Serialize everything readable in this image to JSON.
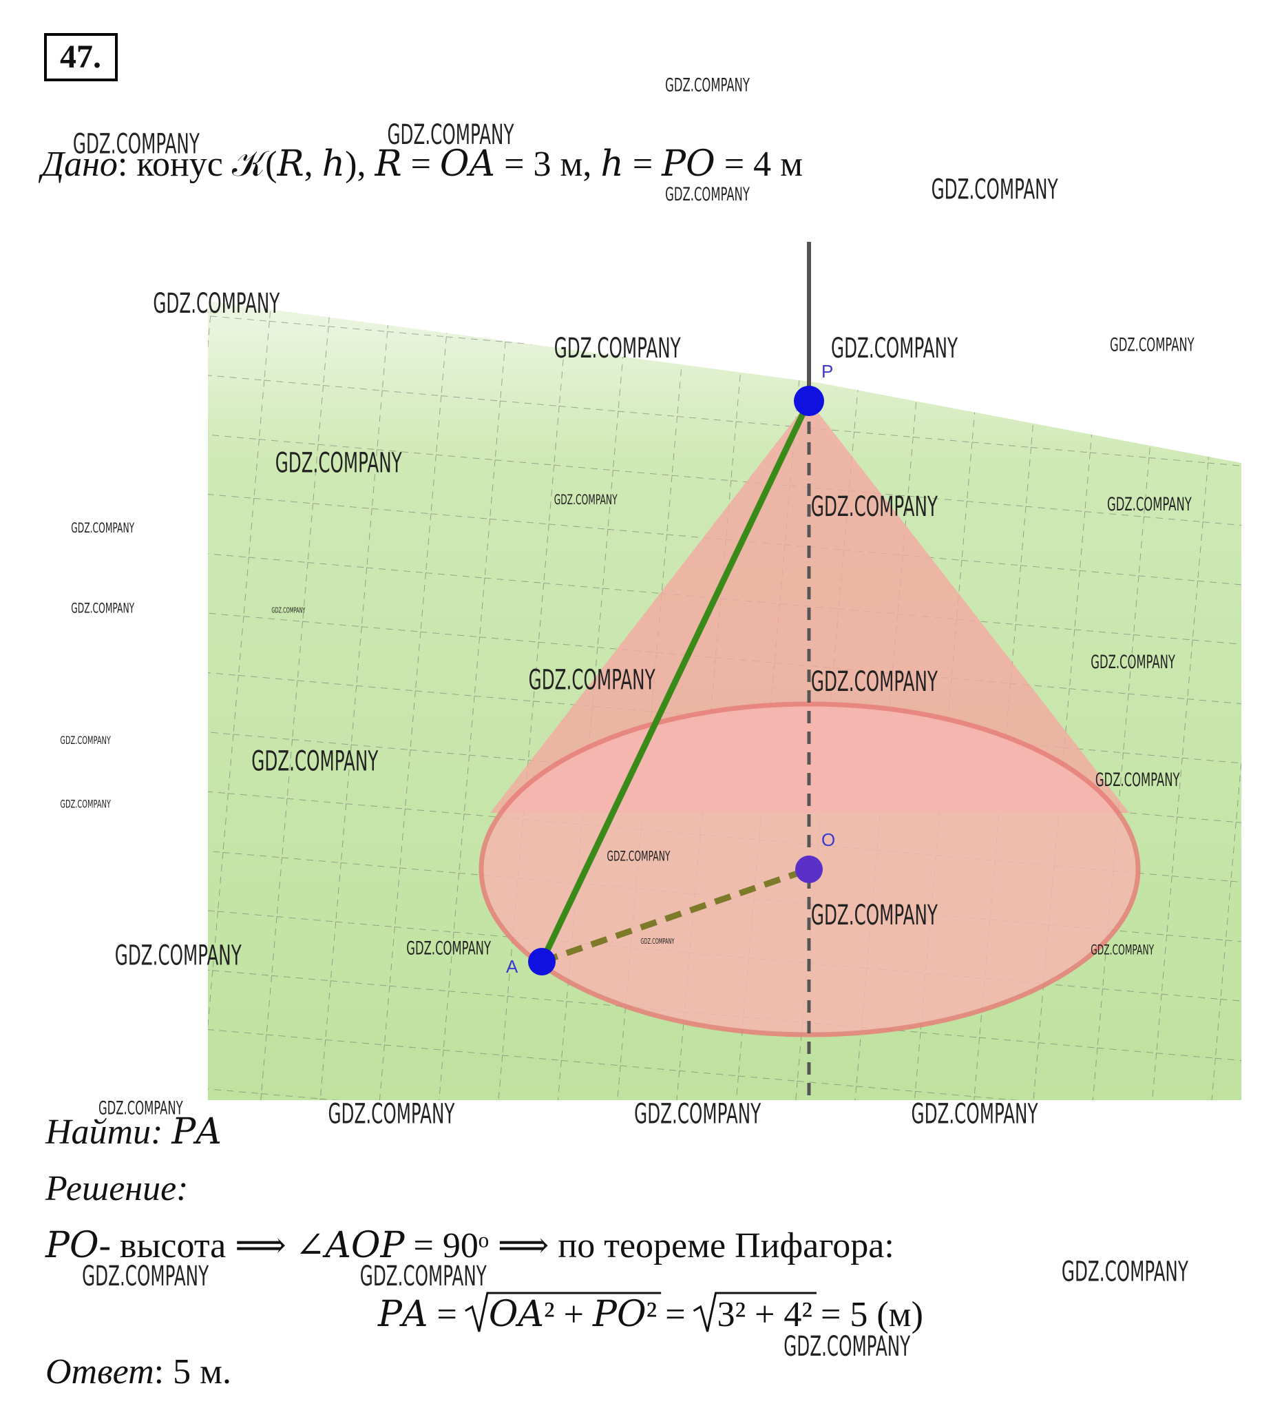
{
  "header": {
    "number": "47."
  },
  "given": {
    "label": "Дано",
    "text": ": конус 𝒦(𝑅, ℎ), 𝑅 = 𝑂𝐴 = 3 м,  ℎ = 𝑃𝑂 = 4 м"
  },
  "figure": {
    "points": {
      "P": "P",
      "O": "O",
      "A": "A"
    }
  },
  "find": {
    "label": "Найти",
    "text": ": 𝑃𝐴"
  },
  "solution": {
    "label": "Решение:",
    "line": "𝑃𝑂- высота ⟹ ∠𝐴𝑂𝑃 = 90ᵒ ⟹ по теореме Пифагора:",
    "formula": {
      "lhs": "𝑃𝐴 =",
      "root1": "𝑂𝐴² + 𝑃𝑂²",
      "mid": "=",
      "root2": "3² + 4²",
      "rhs": "= 5 (м)"
    }
  },
  "answer": {
    "label": "Ответ",
    "text": ": 5 м."
  },
  "watermark": "GDZ.COMPANY"
}
